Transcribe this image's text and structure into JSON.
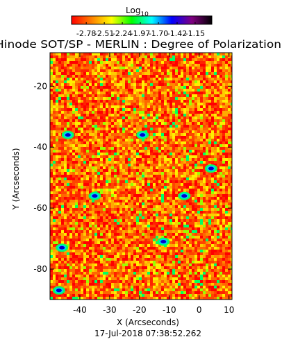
{
  "chart_data": {
    "type": "heatmap",
    "title": "Hinode SOT/SP - MERLIN : Degree of Polarization",
    "xlabel": "X (Arcseconds)",
    "ylabel": "Y (Arcseconds)",
    "xlim": [
      -50,
      11
    ],
    "ylim": [
      -90,
      -9
    ],
    "x_ticks": [
      -40,
      -30,
      -20,
      -10,
      0,
      10
    ],
    "y_ticks": [
      -80,
      -60,
      -40,
      -20
    ],
    "timestamp": "17-Jul-2018 07:38:52.262",
    "colorbar": {
      "label": "Log",
      "label_sub": "10",
      "scale": "log10",
      "range": [
        -3.0,
        -0.9
      ],
      "ticks": [
        "-2.78",
        "-2.51",
        "-2.24",
        "-1.97",
        "-1.70",
        "-1.42",
        "-1.15"
      ],
      "colors": [
        "#ff0000",
        "#ff8000",
        "#ffff00",
        "#00ff00",
        "#00ffff",
        "#0000ff",
        "#800080",
        "#000000"
      ]
    },
    "blue_patches": [
      {
        "x": -44,
        "y": -36
      },
      {
        "x": -19,
        "y": -36
      },
      {
        "x": 4,
        "y": -47
      },
      {
        "x": -35,
        "y": -56
      },
      {
        "x": -5,
        "y": -56
      },
      {
        "x": -46,
        "y": -73
      },
      {
        "x": -12,
        "y": -71
      },
      {
        "x": -47,
        "y": -87
      }
    ]
  }
}
